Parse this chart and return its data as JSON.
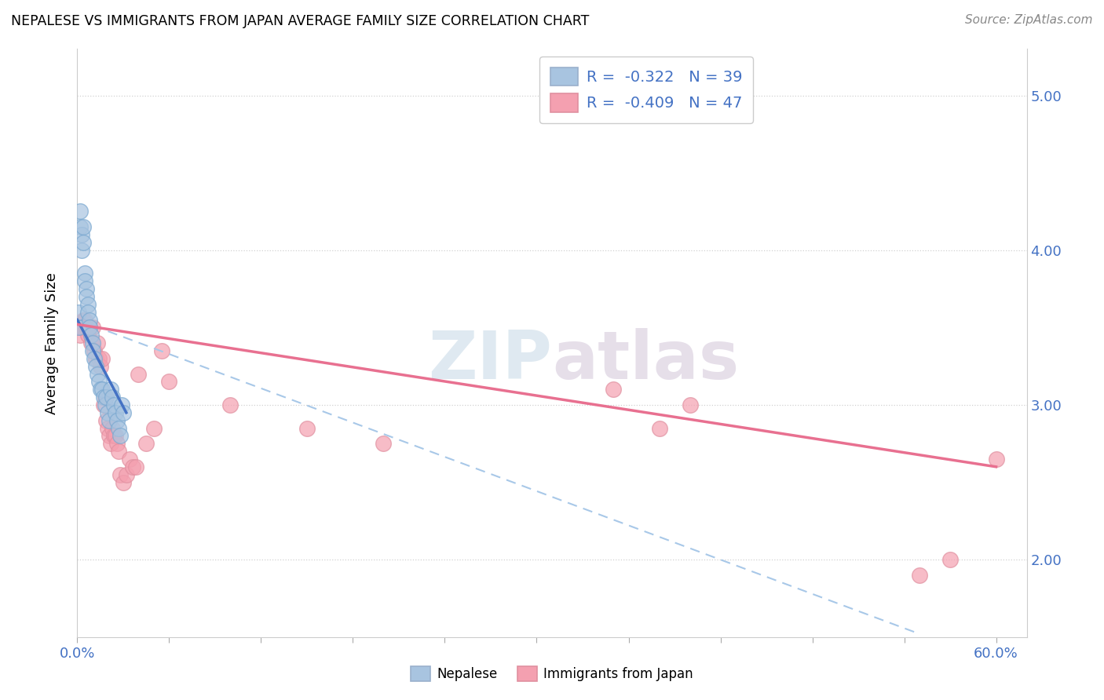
{
  "title": "NEPALESE VS IMMIGRANTS FROM JAPAN AVERAGE FAMILY SIZE CORRELATION CHART",
  "source": "Source: ZipAtlas.com",
  "ylabel": "Average Family Size",
  "right_yticks": [
    2.0,
    3.0,
    4.0,
    5.0
  ],
  "watermark": "ZIPatlas",
  "nepalese_R": "-0.322",
  "nepalese_N": "39",
  "japan_R": "-0.409",
  "japan_N": "47",
  "nepalese_color": "#a8c4e0",
  "japan_color": "#f4a0b0",
  "nepalese_line_color": "#4472c4",
  "japan_line_color": "#e87090",
  "dashed_line_color": "#a8c8e8",
  "nepalese_x": [
    0.001,
    0.001,
    0.002,
    0.002,
    0.003,
    0.003,
    0.004,
    0.004,
    0.005,
    0.005,
    0.006,
    0.006,
    0.007,
    0.007,
    0.008,
    0.008,
    0.009,
    0.01,
    0.01,
    0.011,
    0.012,
    0.013,
    0.014,
    0.015,
    0.016,
    0.017,
    0.018,
    0.019,
    0.02,
    0.021,
    0.022,
    0.023,
    0.024,
    0.025,
    0.026,
    0.027,
    0.028,
    0.029,
    0.03
  ],
  "nepalese_y": [
    3.5,
    3.6,
    4.25,
    4.15,
    4.1,
    4.0,
    4.15,
    4.05,
    3.85,
    3.8,
    3.75,
    3.7,
    3.65,
    3.6,
    3.55,
    3.5,
    3.45,
    3.4,
    3.35,
    3.3,
    3.25,
    3.2,
    3.15,
    3.1,
    3.1,
    3.05,
    3.0,
    3.05,
    2.95,
    2.9,
    3.1,
    3.05,
    3.0,
    2.95,
    2.9,
    2.85,
    2.8,
    3.0,
    2.95
  ],
  "japan_x": [
    0.001,
    0.002,
    0.003,
    0.004,
    0.005,
    0.006,
    0.007,
    0.008,
    0.009,
    0.01,
    0.011,
    0.012,
    0.013,
    0.014,
    0.015,
    0.016,
    0.017,
    0.018,
    0.019,
    0.02,
    0.021,
    0.022,
    0.023,
    0.024,
    0.025,
    0.026,
    0.027,
    0.028,
    0.03,
    0.032,
    0.034,
    0.036,
    0.038,
    0.04,
    0.045,
    0.05,
    0.055,
    0.06,
    0.1,
    0.15,
    0.2,
    0.35,
    0.38,
    0.4,
    0.55,
    0.57,
    0.6
  ],
  "japan_y": [
    3.5,
    3.45,
    3.5,
    3.55,
    3.55,
    3.5,
    3.45,
    3.5,
    3.4,
    3.5,
    3.35,
    3.3,
    3.4,
    3.3,
    3.25,
    3.3,
    3.0,
    3.05,
    2.9,
    2.85,
    2.8,
    2.75,
    2.85,
    2.8,
    2.8,
    2.75,
    2.7,
    2.55,
    2.5,
    2.55,
    2.65,
    2.6,
    2.6,
    3.2,
    2.75,
    2.85,
    3.35,
    3.15,
    3.0,
    2.85,
    2.75,
    3.1,
    2.85,
    3.0,
    1.9,
    2.0,
    2.65
  ],
  "xlim": [
    0.0,
    0.62
  ],
  "ylim": [
    1.5,
    5.3
  ],
  "nepalese_trend_x": [
    0.0,
    0.032
  ],
  "nepalese_trend_y": [
    3.55,
    2.95
  ],
  "japan_trend_x": [
    0.0,
    0.6
  ],
  "japan_trend_y": [
    3.52,
    2.6
  ],
  "dashed_trend_x": [
    0.0,
    0.55
  ],
  "dashed_trend_y": [
    3.55,
    1.52
  ]
}
